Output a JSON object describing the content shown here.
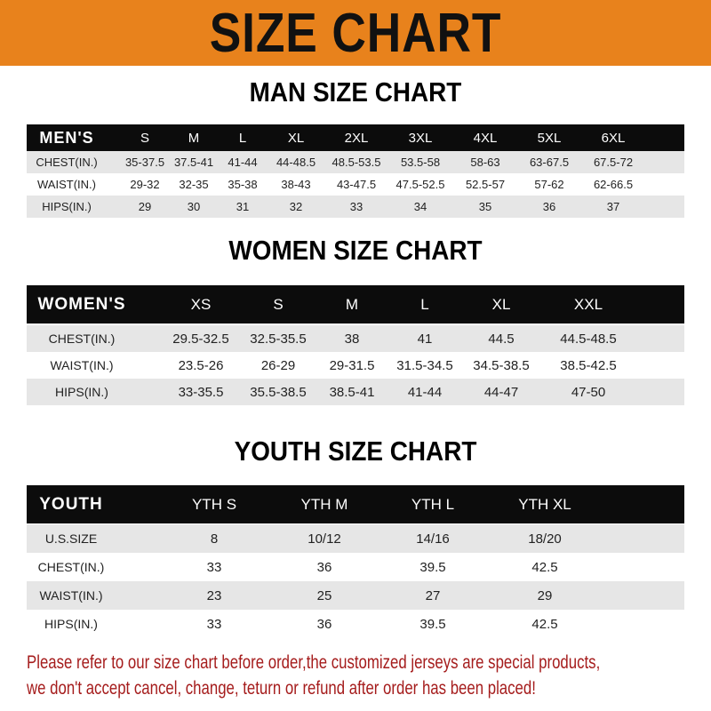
{
  "title": "SIZE CHART",
  "colors": {
    "banner": "#e8821c",
    "header_row": "#0c0c0c",
    "note_text": "#a51c1c"
  },
  "men": {
    "title": "MAN SIZE CHART",
    "headers": [
      "MEN'S",
      "S",
      "M",
      "L",
      "XL",
      "2XL",
      "3XL",
      "4XL",
      "5XL",
      "6XL"
    ],
    "rows": [
      [
        "CHEST(IN.)",
        "35-37.5",
        "37.5-41",
        "41-44",
        "44-48.5",
        "48.5-53.5",
        "53.5-58",
        "58-63",
        "63-67.5",
        "67.5-72"
      ],
      [
        "WAIST(IN.)",
        "29-32",
        "32-35",
        "35-38",
        "38-43",
        "43-47.5",
        "47.5-52.5",
        "52.5-57",
        "57-62",
        "62-66.5"
      ],
      [
        "HIPS(IN.)",
        "29",
        "30",
        "31",
        "32",
        "33",
        "34",
        "35",
        "36",
        "37"
      ]
    ]
  },
  "women": {
    "title": "WOMEN SIZE CHART",
    "headers": [
      "WOMEN'S",
      "XS",
      "S",
      "M",
      "L",
      "XL",
      "XXL"
    ],
    "rows": [
      [
        "CHEST(IN.)",
        "29.5-32.5",
        "32.5-35.5",
        "38",
        "41",
        "44.5",
        "44.5-48.5"
      ],
      [
        "WAIST(IN.)",
        "23.5-26",
        "26-29",
        "29-31.5",
        "31.5-34.5",
        "34.5-38.5",
        "38.5-42.5"
      ],
      [
        "HIPS(IN.)",
        "33-35.5",
        "35.5-38.5",
        "38.5-41",
        "41-44",
        "44-47",
        "47-50"
      ]
    ]
  },
  "youth": {
    "title": "YOUTH SIZE CHART",
    "headers": [
      "YOUTH",
      "YTH S",
      "YTH M",
      "YTH L",
      "YTH XL"
    ],
    "rows": [
      [
        "U.S.SIZE",
        "8",
        "10/12",
        "14/16",
        "18/20"
      ],
      [
        "CHEST(IN.)",
        "33",
        "36",
        "39.5",
        "42.5"
      ],
      [
        "WAIST(IN.)",
        "23",
        "25",
        "27",
        "29"
      ],
      [
        "HIPS(IN.)",
        "33",
        "36",
        "39.5",
        "42.5"
      ]
    ]
  },
  "note": {
    "line1": "Please refer to our size chart before order,the customized jerseys are special products,",
    "line2": "we don't accept cancel, change, teturn or refund after order has been placed!"
  }
}
